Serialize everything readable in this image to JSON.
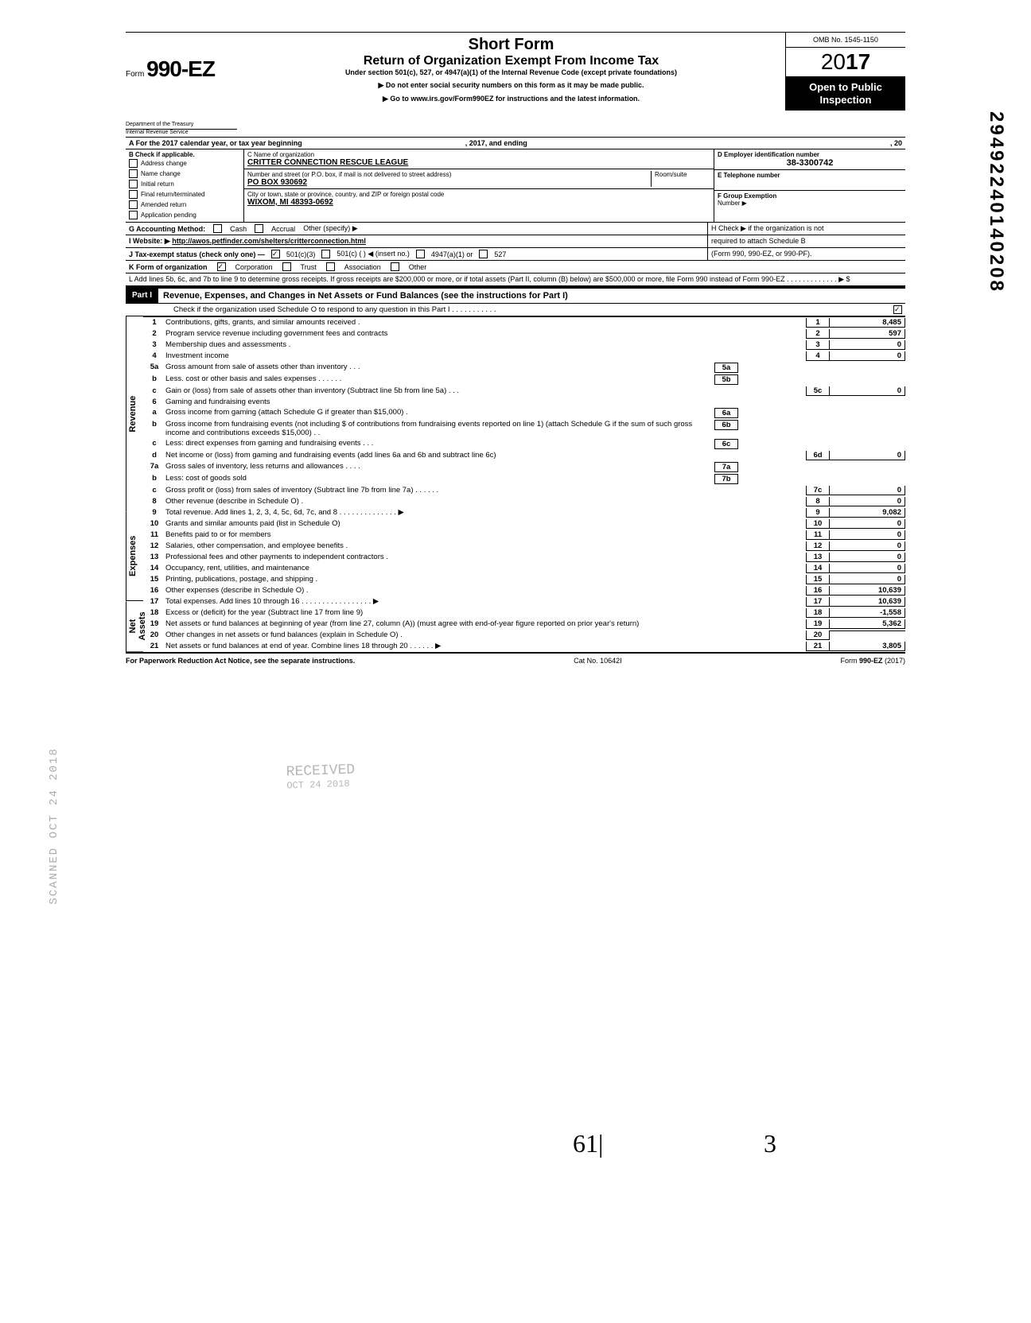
{
  "header": {
    "form_prefix": "Form",
    "form_number": "990-EZ",
    "title_short": "Short Form",
    "title_main": "Return of Organization Exempt From Income Tax",
    "subtitle": "Under section 501(c), 527, or 4947(a)(1) of the Internal Revenue Code (except private foundations)",
    "instr1": "▶ Do not enter social security numbers on this form as it may be made public.",
    "instr2": "▶ Go to www.irs.gov/Form990EZ for instructions and the latest information.",
    "dept1": "Department of the Treasury",
    "dept2": "Internal Revenue Service",
    "omb": "OMB No. 1545-1150",
    "year_prefix": "20",
    "year_bold": "17",
    "otp1": "Open to Public",
    "otp2": "Inspection"
  },
  "side_number": "29492240140208",
  "row_a": {
    "label": "A  For the 2017 calendar year, or tax year beginning",
    "mid": ", 2017, and ending",
    "end": ", 20"
  },
  "section_b": {
    "check_label": "B  Check if applicable.",
    "checks": [
      "Address change",
      "Name change",
      "Initial return",
      "Final return/terminated",
      "Amended return",
      "Application pending"
    ],
    "c_label": "C  Name of organization",
    "c_value": "CRITTER CONNECTION RESCUE LEAGUE",
    "street_label": "Number and street (or P.O. box, if mail is not delivered to street address)",
    "room_label": "Room/suite",
    "street_value": "PO BOX 930692",
    "city_label": "City or town, state or province, country, and ZIP or foreign postal code",
    "city_value": "WIXOM, MI 48393-0692",
    "d_label": "D Employer identification number",
    "d_value": "38-3300742",
    "e_label": "E  Telephone number",
    "f_label": "F  Group Exemption",
    "f_label2": "Number  ▶"
  },
  "row_g": {
    "g_label": "G  Accounting Method:",
    "g_opts": [
      "Cash",
      "Accrual"
    ],
    "g_other": "Other (specify) ▶",
    "h_label": "H  Check ▶        if the organization is not",
    "h_label2": "required to attach Schedule B",
    "h_label3": "(Form 990, 990-EZ, or 990-PF)."
  },
  "row_i": {
    "label": "I   Website: ▶",
    "value": "http://awos.petfinder.com/shelters/critterconnection.html"
  },
  "row_j": {
    "label": "J  Tax-exempt status (check only one) —",
    "opts": [
      "501(c)(3)",
      "501(c) (          ) ◀ (insert no.)",
      "4947(a)(1) or",
      "527"
    ]
  },
  "row_k": {
    "label": "K  Form of organization",
    "opts": [
      "Corporation",
      "Trust",
      "Association",
      "Other"
    ]
  },
  "row_l": "L  Add lines 5b, 6c, and 7b to line 9 to determine gross receipts. If gross receipts are $200,000 or more, or if total assets (Part II, column (B) below) are $500,000 or more, file Form 990 instead of Form 990-EZ .   .   .   .   .   .   .   .   .   .   .   .   .   ▶   $",
  "part1": {
    "hdr": "Part I",
    "title": "Revenue, Expenses, and Changes in Net Assets or Fund Balances (see the instructions for Part I)",
    "check_line": "Check if the organization used Schedule O to respond to any question in this Part I  .   .   .   .   .   .   .   .   .   .   ."
  },
  "side_labels": {
    "revenue": "Revenue",
    "expenses": "Expenses",
    "netassets": "Net Assets"
  },
  "lines": [
    {
      "n": "1",
      "d": "Contributions, gifts, grants, and similar amounts received .",
      "box": "1",
      "v": "8,485"
    },
    {
      "n": "2",
      "d": "Program service revenue including government fees and contracts",
      "box": "2",
      "v": "597"
    },
    {
      "n": "3",
      "d": "Membership dues and assessments .",
      "box": "3",
      "v": "0"
    },
    {
      "n": "4",
      "d": "Investment income",
      "box": "4",
      "v": "0"
    },
    {
      "n": "5a",
      "d": "Gross amount from sale of assets other than inventory   .   .   .",
      "mini": "5a"
    },
    {
      "n": "b",
      "d": "Less. cost or other basis and sales expenses .   .   .   .   .   .",
      "mini": "5b"
    },
    {
      "n": "c",
      "d": "Gain or (loss) from sale of assets other than inventory (Subtract line 5b from line 5a) .   .   .",
      "box": "5c",
      "v": "0"
    },
    {
      "n": "6",
      "d": "Gaming and fundraising events"
    },
    {
      "n": "a",
      "d": "Gross income from gaming (attach Schedule G if greater than $15,000) .",
      "mini": "6a"
    },
    {
      "n": "b",
      "d": "Gross income from fundraising events (not including  $                    of contributions from fundraising events reported on line 1) (attach Schedule G if the sum of such gross income and contributions exceeds $15,000) .   .",
      "mini": "6b"
    },
    {
      "n": "c",
      "d": "Less: direct expenses from gaming and fundraising events   .   .   .",
      "mini": "6c"
    },
    {
      "n": "d",
      "d": "Net income or (loss) from gaming and fundraising events (add lines 6a and 6b and subtract line 6c)",
      "box": "6d",
      "v": "0"
    },
    {
      "n": "7a",
      "d": "Gross sales of inventory, less returns and allowances   .   .   .   .",
      "mini": "7a"
    },
    {
      "n": "b",
      "d": "Less: cost of goods sold",
      "mini": "7b"
    },
    {
      "n": "c",
      "d": "Gross profit or (loss) from sales of inventory (Subtract line 7b from line 7a)   .   .   .   .   .   .",
      "box": "7c",
      "v": "0"
    },
    {
      "n": "8",
      "d": "Other revenue (describe in Schedule O) .",
      "box": "8",
      "v": "0"
    },
    {
      "n": "9",
      "d": "Total revenue. Add lines 1, 2, 3, 4, 5c, 6d, 7c, and 8   .   .   .   .   .   .   .   .   .   .   .   .   .   .   ▶",
      "box": "9",
      "v": "9,082"
    },
    {
      "n": "10",
      "d": "Grants and similar amounts paid (list in Schedule O)",
      "box": "10",
      "v": "0"
    },
    {
      "n": "11",
      "d": "Benefits paid to or for members",
      "box": "11",
      "v": "0"
    },
    {
      "n": "12",
      "d": "Salaries, other compensation, and employee benefits .",
      "box": "12",
      "v": "0"
    },
    {
      "n": "13",
      "d": "Professional fees and other payments to independent contractors .",
      "box": "13",
      "v": "0"
    },
    {
      "n": "14",
      "d": "Occupancy, rent, utilities, and maintenance",
      "box": "14",
      "v": "0"
    },
    {
      "n": "15",
      "d": "Printing, publications, postage, and shipping .",
      "box": "15",
      "v": "0"
    },
    {
      "n": "16",
      "d": "Other expenses (describe in Schedule O)  .",
      "box": "16",
      "v": "10,639"
    },
    {
      "n": "17",
      "d": "Total expenses. Add lines 10 through 16  .   .   .   .   .   .   .   .   .   .   .   .   .   .   .   .   .   ▶",
      "box": "17",
      "v": "10,639"
    },
    {
      "n": "18",
      "d": "Excess or (deficit) for the year (Subtract line 17 from line 9)",
      "box": "18",
      "v": "-1,558"
    },
    {
      "n": "19",
      "d": "Net assets or fund balances at beginning of year (from line 27, column (A)) (must agree with end-of-year figure reported on prior year's return)",
      "box": "19",
      "v": "5,362"
    },
    {
      "n": "20",
      "d": "Other changes in net assets or fund balances (explain in Schedule O) .",
      "box": "20",
      "v": ""
    },
    {
      "n": "21",
      "d": "Net assets or fund balances at end of year. Combine lines 18 through 20   .   .   .   .   .   .   ▶",
      "box": "21",
      "v": "3,805"
    }
  ],
  "footer": {
    "left": "For Paperwork Reduction Act Notice, see the separate instructions.",
    "mid": "Cat  No. 10642I",
    "right": "Form 990-EZ  (2017)"
  },
  "stamp": {
    "l1": "RECEIVED",
    "l2": "OCT 24 2018"
  },
  "scanned": "SCANNED OCT 24 2018",
  "hand1": "61|",
  "hand2": "3"
}
